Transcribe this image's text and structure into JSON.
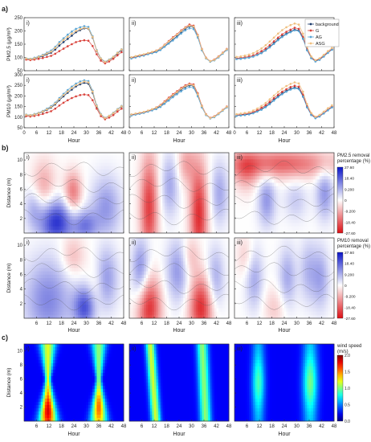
{
  "section_labels": [
    "a)",
    "b)",
    "c)"
  ],
  "panel_labels": [
    "i)",
    "ii)",
    "iii)"
  ],
  "chart_data": [
    {
      "type": "line",
      "section": "a",
      "ylabel": "PM2.5 (μg/m³)",
      "xlabel": "Hour",
      "x_ticks": [
        0,
        6,
        12,
        18,
        24,
        30,
        36,
        42,
        48
      ],
      "xlim": [
        0,
        48
      ],
      "ylim": [
        50,
        250
      ],
      "y_ticks": [
        50,
        100,
        150,
        200,
        250
      ],
      "legend": {
        "placement": "top-right",
        "entries": [
          "background",
          "G",
          "AG",
          "ASG"
        ]
      },
      "x": [
        1,
        3,
        5,
        7,
        9,
        11,
        13,
        15,
        17,
        19,
        21,
        23,
        25,
        27,
        29,
        31,
        33,
        35,
        37,
        39,
        41,
        43,
        45,
        47
      ],
      "panels": [
        {
          "label": "i)",
          "series": [
            {
              "name": "background",
              "color": "#1b3a6b",
              "values": [
                95,
                93,
                96,
                100,
                105,
                112,
                118,
                130,
                145,
                158,
                170,
                182,
                195,
                203,
                210,
                208,
                175,
                125,
                95,
                82,
                90,
                100,
                115,
                128
              ]
            },
            {
              "name": "G",
              "color": "#d9423b",
              "values": [
                92,
                90,
                92,
                95,
                98,
                102,
                106,
                114,
                124,
                133,
                142,
                150,
                158,
                162,
                165,
                163,
                143,
                112,
                88,
                78,
                85,
                95,
                108,
                120
              ]
            },
            {
              "name": "AG",
              "color": "#5aa6d6",
              "values": [
                97,
                95,
                99,
                104,
                110,
                118,
                126,
                140,
                158,
                172,
                186,
                198,
                208,
                214,
                218,
                215,
                180,
                128,
                97,
                84,
                92,
                103,
                118,
                131
              ]
            },
            {
              "name": "ASG",
              "color": "#f0c080",
              "values": [
                96,
                94,
                97,
                102,
                108,
                115,
                122,
                136,
                152,
                166,
                178,
                190,
                200,
                207,
                212,
                209,
                177,
                126,
                96,
                83,
                91,
                102,
                117,
                130
              ]
            }
          ]
        },
        {
          "label": "ii)",
          "series": [
            {
              "name": "background",
              "color": "#1b3a6b",
              "values": [
                100,
                104,
                108,
                110,
                115,
                118,
                122,
                130,
                142,
                155,
                168,
                180,
                195,
                208,
                218,
                215,
                180,
                130,
                98,
                85,
                90,
                102,
                116,
                130
              ]
            },
            {
              "name": "G",
              "color": "#d9423b",
              "values": [
                98,
                102,
                106,
                109,
                114,
                119,
                126,
                135,
                148,
                162,
                176,
                188,
                202,
                214,
                224,
                220,
                185,
                132,
                99,
                86,
                92,
                104,
                118,
                132
              ]
            },
            {
              "name": "AG",
              "color": "#5aa6d6",
              "values": [
                96,
                100,
                104,
                107,
                112,
                116,
                120,
                128,
                140,
                152,
                164,
                176,
                190,
                202,
                210,
                207,
                175,
                127,
                96,
                84,
                89,
                100,
                114,
                128
              ]
            },
            {
              "name": "ASG",
              "color": "#f0c080",
              "values": [
                101,
                105,
                109,
                112,
                117,
                121,
                126,
                134,
                147,
                160,
                173,
                186,
                200,
                212,
                220,
                217,
                183,
                131,
                98,
                86,
                91,
                103,
                117,
                131
              ]
            }
          ]
        },
        {
          "label": "iii)",
          "series": [
            {
              "name": "background",
              "color": "#1b3a6b",
              "values": [
                95,
                96,
                98,
                100,
                104,
                110,
                118,
                128,
                140,
                154,
                168,
                180,
                190,
                198,
                205,
                202,
                172,
                128,
                98,
                86,
                92,
                104,
                118,
                130
              ]
            },
            {
              "name": "G",
              "color": "#d9423b",
              "values": [
                97,
                99,
                101,
                104,
                108,
                115,
                124,
                134,
                147,
                161,
                175,
                187,
                197,
                205,
                212,
                208,
                178,
                132,
                100,
                88,
                94,
                106,
                120,
                132
              ]
            },
            {
              "name": "AG",
              "color": "#5aa6d6",
              "values": [
                94,
                95,
                97,
                99,
                103,
                109,
                116,
                126,
                138,
                151,
                165,
                177,
                187,
                195,
                202,
                199,
                170,
                127,
                97,
                85,
                91,
                103,
                117,
                129
              ]
            },
            {
              "name": "ASG",
              "color": "#f0c080",
              "values": [
                102,
                104,
                107,
                111,
                116,
                124,
                134,
                146,
                160,
                175,
                190,
                203,
                214,
                222,
                228,
                224,
                190,
                140,
                104,
                90,
                97,
                110,
                124,
                136
              ]
            }
          ]
        }
      ]
    },
    {
      "type": "line",
      "section": "a",
      "ylabel": "PM10 (μg/m³)",
      "xlabel": "Hour",
      "x_ticks": [
        0,
        6,
        12,
        18,
        24,
        30,
        36,
        42,
        48
      ],
      "xlim": [
        0,
        48
      ],
      "ylim": [
        50,
        300
      ],
      "y_ticks": [
        50,
        100,
        150,
        200,
        250,
        300
      ],
      "x": [
        1,
        3,
        5,
        7,
        9,
        11,
        13,
        15,
        17,
        19,
        21,
        23,
        25,
        27,
        29,
        31,
        33,
        35,
        37,
        39,
        41,
        43,
        45,
        47
      ],
      "panels": [
        {
          "label": "i)",
          "series": [
            {
              "name": "background",
              "color": "#1b3a6b",
              "values": [
                110,
                108,
                112,
                118,
                125,
                135,
                145,
                160,
                180,
                198,
                215,
                230,
                245,
                255,
                262,
                258,
                215,
                150,
                112,
                95,
                105,
                118,
                135,
                150
              ]
            },
            {
              "name": "G",
              "color": "#d9423b",
              "values": [
                105,
                103,
                106,
                110,
                115,
                122,
                128,
                140,
                155,
                168,
                180,
                190,
                198,
                204,
                207,
                204,
                180,
                140,
                105,
                90,
                98,
                110,
                126,
                140
              ]
            },
            {
              "name": "AG",
              "color": "#5aa6d6",
              "values": [
                112,
                110,
                115,
                121,
                129,
                140,
                152,
                168,
                190,
                210,
                228,
                244,
                258,
                268,
                274,
                270,
                225,
                156,
                115,
                97,
                107,
                121,
                138,
                153
              ]
            },
            {
              "name": "ASG",
              "color": "#f0c080",
              "values": [
                111,
                109,
                113,
                119,
                127,
                137,
                148,
                164,
                185,
                204,
                221,
                237,
                251,
                261,
                268,
                264,
                220,
                153,
                113,
                96,
                106,
                119,
                136,
                151
              ]
            }
          ]
        },
        {
          "label": "ii)",
          "series": [
            {
              "name": "background",
              "color": "#1b3a6b",
              "values": [
                112,
                116,
                120,
                124,
                130,
                136,
                142,
                152,
                168,
                184,
                200,
                214,
                230,
                242,
                250,
                246,
                205,
                150,
                112,
                95,
                102,
                116,
                132,
                148
              ]
            },
            {
              "name": "G",
              "color": "#d9423b",
              "values": [
                110,
                114,
                118,
                122,
                128,
                136,
                146,
                158,
                175,
                192,
                208,
                222,
                238,
                250,
                258,
                254,
                212,
                154,
                114,
                97,
                104,
                118,
                134,
                150
              ]
            },
            {
              "name": "AG",
              "color": "#5aa6d6",
              "values": [
                108,
                112,
                116,
                120,
                126,
                132,
                138,
                148,
                163,
                178,
                194,
                208,
                222,
                234,
                242,
                238,
                198,
                146,
                110,
                94,
                100,
                114,
                130,
                146
              ]
            },
            {
              "name": "ASG",
              "color": "#f0c080",
              "values": [
                113,
                117,
                121,
                125,
                131,
                138,
                145,
                156,
                172,
                188,
                204,
                218,
                234,
                246,
                254,
                250,
                208,
                152,
                113,
                96,
                103,
                117,
                133,
                149
              ]
            }
          ]
        },
        {
          "label": "iii)",
          "series": [
            {
              "name": "background",
              "color": "#1b3a6b",
              "values": [
                108,
                110,
                112,
                115,
                120,
                128,
                138,
                150,
                165,
                182,
                198,
                212,
                224,
                234,
                240,
                236,
                200,
                148,
                112,
                96,
                104,
                118,
                134,
                148
              ]
            },
            {
              "name": "G",
              "color": "#d9423b",
              "values": [
                110,
                112,
                115,
                118,
                124,
                133,
                144,
                157,
                173,
                190,
                206,
                220,
                232,
                242,
                248,
                244,
                207,
                152,
                114,
                98,
                106,
                120,
                136,
                150
              ]
            },
            {
              "name": "AG",
              "color": "#5aa6d6",
              "values": [
                106,
                108,
                110,
                113,
                118,
                126,
                135,
                147,
                161,
                178,
                194,
                208,
                220,
                230,
                236,
                232,
                196,
                146,
                110,
                95,
                103,
                117,
                132,
                146
              ]
            },
            {
              "name": "ASG",
              "color": "#f0c080",
              "values": [
                114,
                117,
                120,
                124,
                131,
                141,
                153,
                167,
                184,
                202,
                219,
                234,
                247,
                257,
                264,
                259,
                220,
                162,
                120,
                102,
                111,
                126,
                142,
                156
              ]
            }
          ]
        }
      ]
    },
    {
      "type": "heatmap",
      "section": "b",
      "ylabel": "Distance (m)",
      "xlabel": "Hour",
      "x_ticks": [
        6,
        12,
        18,
        24,
        30,
        36,
        42,
        48
      ],
      "y_ticks": [
        2,
        4,
        6,
        8,
        10
      ],
      "colorbar": {
        "title": "PM2.5 removal percentage (%)",
        "ticks": [
          "27.60",
          "18.40",
          "9.200",
          "0",
          "-9.200",
          "-18.40",
          "-27.60"
        ],
        "range": [
          -27.6,
          27.6
        ]
      },
      "panels": [
        "i)",
        "ii)",
        "iii)"
      ]
    },
    {
      "type": "heatmap",
      "section": "b",
      "ylabel": "Distance (m)",
      "xlabel": "Hour",
      "x_ticks": [
        6,
        12,
        18,
        24,
        30,
        36,
        42,
        48
      ],
      "y_ticks": [
        2,
        4,
        6,
        8,
        10
      ],
      "colorbar": {
        "title": "PM10 removal percentage (%)",
        "ticks": [
          "27.60",
          "18.40",
          "9.200",
          "0",
          "-9.200",
          "-18.40",
          "-27.60"
        ],
        "range": [
          -27.6,
          27.6
        ]
      },
      "panels": [
        "i)",
        "ii)",
        "iii)"
      ]
    },
    {
      "type": "heatmap",
      "section": "c",
      "ylabel": "Distance (m)",
      "xlabel": "Hour",
      "x_ticks": [
        6,
        12,
        18,
        24,
        30,
        36,
        42,
        48
      ],
      "y_ticks": [
        2,
        4,
        6,
        8,
        10
      ],
      "colorbar": {
        "title": "wind speed (m/s)",
        "ticks": [
          "2.0",
          "1.5",
          "1.0",
          "0.5",
          "0.0"
        ],
        "range": [
          0,
          2
        ]
      },
      "panels": [
        "i)",
        "ii)",
        "iii)"
      ]
    }
  ]
}
